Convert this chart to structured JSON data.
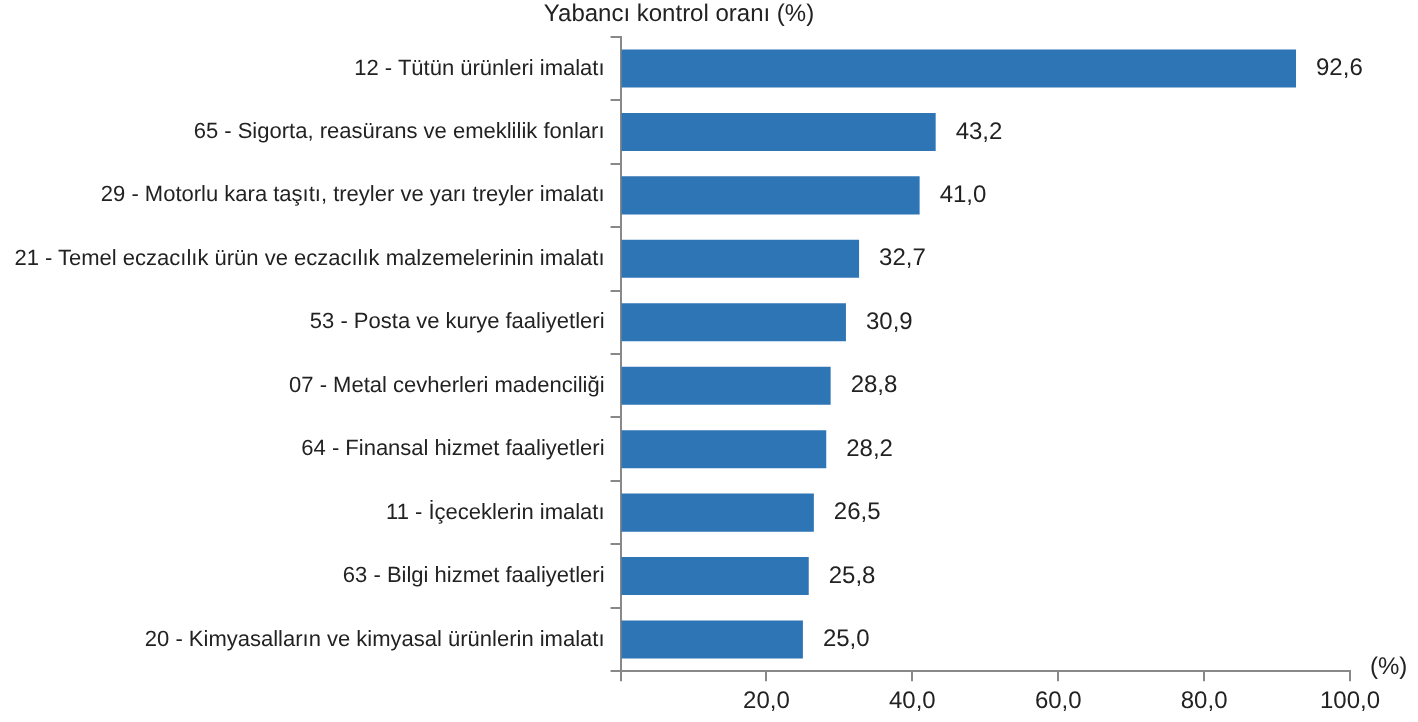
{
  "chart_data": {
    "type": "bar",
    "orientation": "horizontal",
    "title": "Yabancı kontrol oranı (%)",
    "xlabel": "(%)",
    "categories": [
      "12 - Tütün ürünleri imalatı",
      "65 - Sigorta, reasürans ve emeklilik fonları",
      "29 - Motorlu kara taşıtı, treyler ve yarı treyler imalatı",
      "21 - Temel eczacılık ürün ve eczacılık malzemelerinin imalatı",
      "53 - Posta ve kurye faaliyetleri",
      "07 - Metal cevherleri madenciliği",
      "64 - Finansal hizmet faaliyetleri",
      "11 - İçeceklerin imalatı",
      "63 - Bilgi hizmet faaliyetleri",
      "20 - Kimyasalların ve kimyasal ürünlerin imalatı"
    ],
    "values": [
      92.6,
      43.2,
      41.0,
      32.7,
      30.9,
      28.8,
      28.2,
      26.5,
      25.8,
      25.0
    ],
    "value_labels": [
      "92,6",
      "43,2",
      "41,0",
      "32,7",
      "30,9",
      "28,8",
      "28,2",
      "26,5",
      "25,8",
      "25,0"
    ],
    "color": "#2e75b6",
    "xlim": [
      0,
      100
    ],
    "xticks": [
      {
        "value": 0,
        "label": null
      },
      {
        "value": 20,
        "label": "20,0"
      },
      {
        "value": 40,
        "label": "40,0"
      },
      {
        "value": 60,
        "label": "60,0"
      },
      {
        "value": 80,
        "label": "80,0"
      },
      {
        "value": 100,
        "label": "100,0"
      }
    ],
    "grid": false,
    "legend": false
  }
}
